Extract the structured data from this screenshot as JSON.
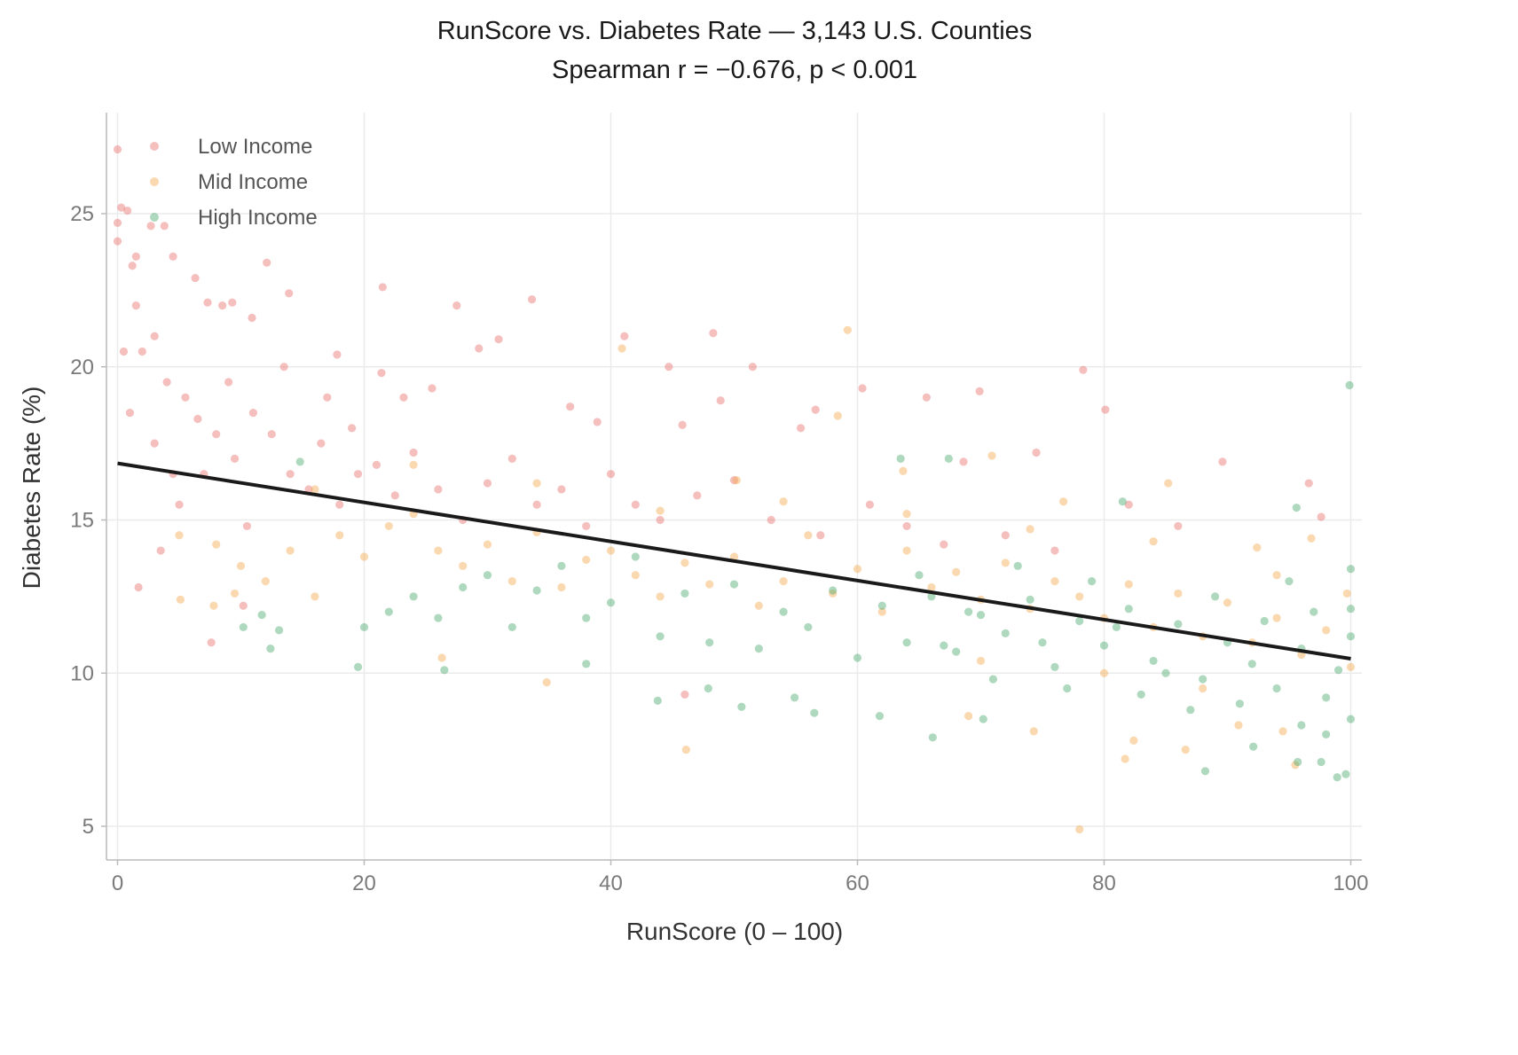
{
  "chart_data": {
    "type": "scatter",
    "title": "RunScore vs. Diabetes Rate  —  3,143 U.S. Counties",
    "subtitle": "Spearman r = −0.676,  p < 0.001",
    "xlabel": "RunScore (0 – 100)",
    "ylabel": "Diabetes Rate (%)",
    "xlim": [
      -0.9,
      100.9
    ],
    "ylim": [
      3.9,
      28.3
    ],
    "xticks": [
      0,
      20,
      40,
      60,
      80,
      100
    ],
    "yticks": [
      5,
      10,
      15,
      20,
      25
    ],
    "grid": true,
    "legend": "top-left",
    "trend_line": {
      "color": "#1a1a1a",
      "points": [
        [
          0,
          16.85
        ],
        [
          100,
          10.47
        ]
      ]
    },
    "series": [
      {
        "name": "Low Income",
        "color": "#e8716f",
        "points": [
          [
            0,
            27.1
          ],
          [
            0.3,
            25.2
          ],
          [
            0.8,
            25.1
          ],
          [
            0,
            24.7
          ],
          [
            0,
            24.1
          ],
          [
            2.7,
            24.6
          ],
          [
            3.8,
            24.6
          ],
          [
            4.5,
            23.6
          ],
          [
            1.2,
            23.3
          ],
          [
            1.5,
            23.6
          ],
          [
            6.3,
            22.9
          ],
          [
            12.1,
            23.4
          ],
          [
            10.9,
            21.6
          ],
          [
            7.3,
            22.1
          ],
          [
            8.5,
            22.0
          ],
          [
            9.3,
            22.1
          ],
          [
            13.9,
            22.4
          ],
          [
            21.5,
            22.6
          ],
          [
            33.6,
            22.2
          ],
          [
            27.5,
            22.0
          ],
          [
            29.3,
            20.6
          ],
          [
            30.9,
            20.9
          ],
          [
            41.1,
            21.0
          ],
          [
            48.3,
            21.1
          ],
          [
            51.5,
            20.0
          ],
          [
            44.7,
            20.0
          ],
          [
            17.8,
            20.4
          ],
          [
            21.4,
            19.8
          ],
          [
            23.2,
            19.0
          ],
          [
            25.5,
            19.3
          ],
          [
            60.4,
            19.3
          ],
          [
            65.6,
            19.0
          ],
          [
            69.9,
            19.2
          ],
          [
            78.3,
            19.9
          ],
          [
            80.1,
            18.6
          ],
          [
            89.6,
            16.9
          ],
          [
            96.6,
            16.2
          ],
          [
            97.6,
            15.1
          ],
          [
            74.5,
            17.2
          ],
          [
            68.6,
            16.9
          ],
          [
            55.4,
            18.0
          ],
          [
            56.6,
            18.6
          ],
          [
            48.9,
            18.9
          ],
          [
            45.8,
            18.1
          ],
          [
            38.9,
            18.2
          ],
          [
            36.7,
            18.7
          ],
          [
            7.6,
            11.0
          ],
          [
            1.7,
            12.8
          ],
          [
            10.2,
            12.2
          ],
          [
            46.0,
            9.3
          ],
          [
            3.0,
            21.0
          ],
          [
            2.0,
            20.5
          ],
          [
            4.0,
            19.5
          ],
          [
            5.5,
            19.0
          ],
          [
            6.5,
            18.3
          ],
          [
            8.0,
            17.8
          ],
          [
            9.5,
            17.0
          ],
          [
            11.0,
            18.5
          ],
          [
            12.5,
            17.8
          ],
          [
            14.0,
            16.5
          ],
          [
            15.5,
            16.0
          ],
          [
            16.5,
            17.5
          ],
          [
            18.0,
            15.5
          ],
          [
            19.5,
            16.5
          ],
          [
            21.0,
            16.8
          ],
          [
            22.5,
            15.8
          ],
          [
            24.0,
            17.2
          ],
          [
            26.0,
            16.0
          ],
          [
            28.0,
            15.0
          ],
          [
            30.0,
            16.2
          ],
          [
            32.0,
            17.0
          ],
          [
            34.0,
            15.5
          ],
          [
            36.0,
            16.0
          ],
          [
            38.0,
            14.8
          ],
          [
            40.0,
            16.5
          ],
          [
            42.0,
            15.5
          ],
          [
            44.0,
            15.0
          ],
          [
            47.0,
            15.8
          ],
          [
            50.0,
            16.3
          ],
          [
            53.0,
            15.0
          ],
          [
            57.0,
            14.5
          ],
          [
            61.0,
            15.5
          ],
          [
            64.0,
            14.8
          ],
          [
            67.0,
            14.2
          ],
          [
            72.0,
            14.5
          ],
          [
            76.0,
            14.0
          ],
          [
            82.0,
            15.5
          ],
          [
            86.0,
            14.8
          ],
          [
            3.5,
            14.0
          ],
          [
            5.0,
            15.5
          ],
          [
            7.0,
            16.5
          ],
          [
            1.0,
            18.5
          ],
          [
            0.5,
            20.5
          ],
          [
            1.5,
            22.0
          ],
          [
            3.0,
            17.5
          ],
          [
            4.5,
            16.5
          ],
          [
            9.0,
            19.5
          ],
          [
            10.5,
            14.8
          ],
          [
            13.5,
            20.0
          ],
          [
            17.0,
            19.0
          ],
          [
            19.0,
            18.0
          ]
        ]
      },
      {
        "name": "Mid Income",
        "color": "#f5a850",
        "points": [
          [
            59.2,
            21.2
          ],
          [
            40.9,
            20.6
          ],
          [
            58.4,
            18.4
          ],
          [
            50.2,
            16.3
          ],
          [
            63.7,
            16.6
          ],
          [
            70.9,
            17.1
          ],
          [
            76.7,
            15.6
          ],
          [
            85.2,
            16.2
          ],
          [
            92.4,
            14.1
          ],
          [
            96.8,
            14.4
          ],
          [
            99.7,
            12.6
          ],
          [
            78,
            4.9
          ],
          [
            74.3,
            8.1
          ],
          [
            46.1,
            7.5
          ],
          [
            34.8,
            9.7
          ],
          [
            69,
            8.6
          ],
          [
            81.7,
            7.2
          ],
          [
            82.4,
            7.8
          ],
          [
            86.6,
            7.5
          ],
          [
            90.9,
            8.3
          ],
          [
            94.5,
            8.1
          ],
          [
            95.5,
            7.0
          ],
          [
            26.3,
            10.5
          ],
          [
            5.1,
            12.4
          ],
          [
            7.8,
            12.2
          ],
          [
            9.5,
            12.6
          ],
          [
            5,
            14.5
          ],
          [
            8,
            14.2
          ],
          [
            10,
            13.5
          ],
          [
            12,
            13.0
          ],
          [
            14,
            14.0
          ],
          [
            16,
            12.5
          ],
          [
            18,
            14.5
          ],
          [
            20,
            13.8
          ],
          [
            22,
            14.8
          ],
          [
            24,
            15.2
          ],
          [
            26,
            14.0
          ],
          [
            28,
            13.5
          ],
          [
            30,
            14.2
          ],
          [
            32,
            13.0
          ],
          [
            34,
            14.6
          ],
          [
            36,
            12.8
          ],
          [
            38,
            13.7
          ],
          [
            40,
            14.0
          ],
          [
            42,
            13.2
          ],
          [
            44,
            12.5
          ],
          [
            46,
            13.6
          ],
          [
            48,
            12.9
          ],
          [
            50,
            13.8
          ],
          [
            52,
            12.2
          ],
          [
            54,
            13.0
          ],
          [
            56,
            14.5
          ],
          [
            58,
            12.6
          ],
          [
            60,
            13.4
          ],
          [
            62,
            12.0
          ],
          [
            64,
            14.0
          ],
          [
            66,
            12.8
          ],
          [
            68,
            13.3
          ],
          [
            70,
            12.4
          ],
          [
            72,
            13.6
          ],
          [
            74,
            12.1
          ],
          [
            76,
            13.0
          ],
          [
            78,
            12.5
          ],
          [
            80,
            11.8
          ],
          [
            82,
            12.9
          ],
          [
            84,
            11.5
          ],
          [
            86,
            12.6
          ],
          [
            88,
            11.2
          ],
          [
            90,
            12.3
          ],
          [
            92,
            11.0
          ],
          [
            94,
            11.8
          ],
          [
            96,
            10.6
          ],
          [
            98,
            11.4
          ],
          [
            100,
            10.2
          ],
          [
            16,
            16.0
          ],
          [
            24,
            16.8
          ],
          [
            34,
            16.2
          ],
          [
            44,
            15.3
          ],
          [
            54,
            15.6
          ],
          [
            64,
            15.2
          ],
          [
            74,
            14.7
          ],
          [
            84,
            14.3
          ],
          [
            94,
            13.2
          ],
          [
            88,
            9.5
          ],
          [
            80,
            10.0
          ],
          [
            70,
            10.4
          ]
        ]
      },
      {
        "name": "High Income",
        "color": "#4daa6e",
        "points": [
          [
            99.9,
            19.4
          ],
          [
            63.5,
            17.0
          ],
          [
            67.4,
            17.0
          ],
          [
            95.6,
            15.4
          ],
          [
            81.5,
            15.6
          ],
          [
            14.8,
            16.9
          ],
          [
            11.7,
            11.9
          ],
          [
            13.1,
            11.4
          ],
          [
            19.5,
            10.2
          ],
          [
            26.5,
            10.1
          ],
          [
            12.4,
            10.8
          ],
          [
            10.2,
            11.5
          ],
          [
            88.2,
            6.8
          ],
          [
            98.9,
            6.6
          ],
          [
            99.6,
            6.7
          ],
          [
            95.7,
            7.1
          ],
          [
            97.6,
            7.1
          ],
          [
            92.1,
            7.6
          ],
          [
            66.1,
            7.9
          ],
          [
            61.8,
            8.6
          ],
          [
            70.2,
            8.5
          ],
          [
            50.6,
            8.9
          ],
          [
            54.9,
            9.2
          ],
          [
            56.5,
            8.7
          ],
          [
            47.9,
            9.5
          ],
          [
            43.8,
            9.1
          ],
          [
            38,
            10.3
          ],
          [
            20,
            11.5
          ],
          [
            22,
            12.0
          ],
          [
            24,
            12.5
          ],
          [
            26,
            11.8
          ],
          [
            28,
            12.8
          ],
          [
            30,
            13.2
          ],
          [
            32,
            11.5
          ],
          [
            34,
            12.7
          ],
          [
            36,
            13.5
          ],
          [
            38,
            11.8
          ],
          [
            40,
            12.3
          ],
          [
            42,
            13.8
          ],
          [
            44,
            11.2
          ],
          [
            46,
            12.6
          ],
          [
            48,
            11.0
          ],
          [
            50,
            12.9
          ],
          [
            52,
            10.8
          ],
          [
            54,
            12.0
          ],
          [
            56,
            11.5
          ],
          [
            58,
            12.7
          ],
          [
            60,
            10.5
          ],
          [
            62,
            12.2
          ],
          [
            64,
            11.0
          ],
          [
            66,
            12.5
          ],
          [
            68,
            10.7
          ],
          [
            70,
            11.9
          ],
          [
            72,
            11.3
          ],
          [
            74,
            12.4
          ],
          [
            76,
            10.2
          ],
          [
            78,
            11.7
          ],
          [
            80,
            10.9
          ],
          [
            82,
            12.1
          ],
          [
            84,
            10.4
          ],
          [
            86,
            11.6
          ],
          [
            88,
            9.8
          ],
          [
            90,
            11.0
          ],
          [
            92,
            10.3
          ],
          [
            94,
            9.5
          ],
          [
            96,
            10.8
          ],
          [
            98,
            9.2
          ],
          [
            100,
            11.2
          ],
          [
            100,
            8.5
          ],
          [
            99,
            10.1
          ],
          [
            97,
            12.0
          ],
          [
            95,
            13.0
          ],
          [
            93,
            11.7
          ],
          [
            91,
            9.0
          ],
          [
            89,
            12.5
          ],
          [
            87,
            8.8
          ],
          [
            85,
            10.0
          ],
          [
            83,
            9.3
          ],
          [
            81,
            11.5
          ],
          [
            79,
            13.0
          ],
          [
            77,
            9.5
          ],
          [
            75,
            11.0
          ],
          [
            73,
            13.5
          ],
          [
            71,
            9.8
          ],
          [
            69,
            12.0
          ],
          [
            67,
            10.9
          ],
          [
            65,
            13.2
          ],
          [
            96,
            8.3
          ],
          [
            98,
            8.0
          ],
          [
            100,
            13.4
          ],
          [
            100,
            12.1
          ]
        ]
      }
    ]
  }
}
